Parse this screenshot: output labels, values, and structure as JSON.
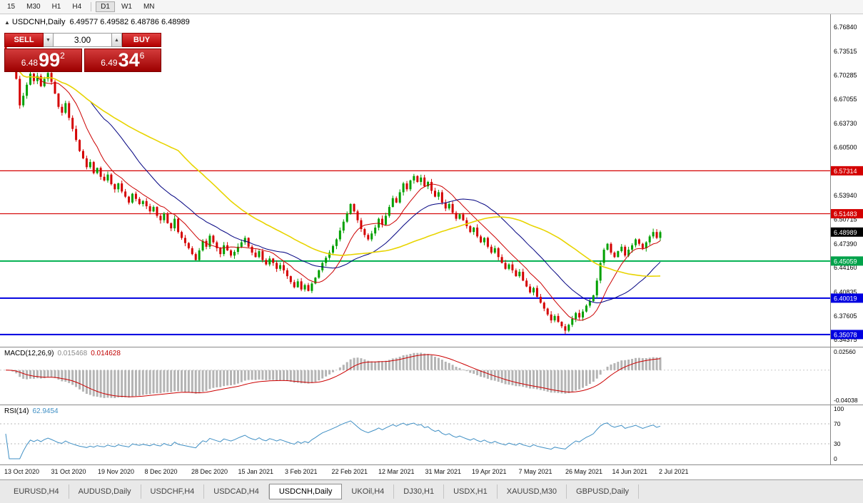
{
  "toolbar": {
    "timeframes": [
      "15",
      "M30",
      "H1",
      "H4",
      "D1",
      "W1",
      "MN"
    ],
    "active_timeframe": "D1"
  },
  "chart": {
    "symbol": "USDCNH,Daily",
    "ohlc_text": "6.49577 6.49582 6.48786 6.48989"
  },
  "trade": {
    "sell_label": "SELL",
    "buy_label": "BUY",
    "volume": "3.00",
    "down_arrow": "▼",
    "up_arrow": "▲",
    "sell_price": {
      "prefix": "6.48",
      "big": "99",
      "sup": "2"
    },
    "buy_price": {
      "prefix": "6.49",
      "big": "34",
      "sup": "6"
    }
  },
  "price_axis": {
    "ticks": [
      "6.76840",
      "6.73515",
      "6.70285",
      "6.67055",
      "6.63730",
      "6.60500",
      "6.53940",
      "6.50715",
      "6.47390",
      "6.44160",
      "6.40835",
      "6.37605",
      "6.34375"
    ],
    "badges": [
      {
        "label": "6.57314",
        "value": 6.57314,
        "color": "#d40000"
      },
      {
        "label": "6.51483",
        "value": 6.51483,
        "color": "#d40000"
      },
      {
        "label": "6.48989",
        "value": 6.48989,
        "color": "#000000"
      },
      {
        "label": "6.45059",
        "value": 6.45059,
        "color": "#00a24a"
      },
      {
        "label": "6.40019",
        "value": 6.40019,
        "color": "#0000e0"
      },
      {
        "label": "6.35078",
        "value": 6.35078,
        "color": "#0000e0"
      }
    ]
  },
  "macd": {
    "title": "MACD(12,26,9)",
    "value1": "0.015468",
    "value2": "0.014628",
    "axis_top": "0.02560",
    "axis_bottom": "-0.04038"
  },
  "rsi": {
    "title": "RSI(14)",
    "value": "62.9454",
    "levels": [
      "100",
      "70",
      "30",
      "0"
    ]
  },
  "tabs": {
    "items": [
      "EURUSD,H4",
      "AUDUSD,Daily",
      "USDCHF,H4",
      "USDCAD,H4",
      "USDCNH,Daily",
      "UKOil,H4",
      "DJ30,H1",
      "USDX,H1",
      "XAUUSD,M30",
      "GBPUSD,Daily"
    ],
    "active": "USDCNH,Daily"
  },
  "chart_data": {
    "type": "candlestick",
    "symbol": "USDCNH",
    "timeframe": "Daily",
    "title": "USDCNH,Daily",
    "current_ohlc": {
      "open": 6.49577,
      "high": 6.49582,
      "low": 6.48786,
      "close": 6.48989
    },
    "ylim": [
      6.34375,
      6.7684
    ],
    "x_labels": [
      "13 Oct 2020",
      "31 Oct 2020",
      "19 Nov 2020",
      "8 Dec 2020",
      "28 Dec 2020",
      "15 Jan 2021",
      "3 Feb 2021",
      "22 Feb 2021",
      "12 Mar 2021",
      "31 Mar 2021",
      "19 Apr 2021",
      "7 May 2021",
      "26 May 2021",
      "14 Jun 2021",
      "2 Jul 2021"
    ],
    "closes": [
      6.734,
      6.728,
      6.715,
      6.698,
      6.662,
      6.675,
      6.69,
      6.705,
      6.695,
      6.702,
      6.688,
      6.698,
      6.706,
      6.694,
      6.678,
      6.66,
      6.652,
      6.665,
      6.645,
      6.63,
      6.615,
      6.6,
      6.59,
      6.578,
      6.585,
      6.57,
      6.577,
      6.565,
      6.56,
      6.568,
      6.555,
      6.548,
      6.556,
      6.545,
      6.538,
      6.53,
      6.542,
      6.535,
      6.528,
      6.532,
      6.525,
      6.518,
      6.524,
      6.512,
      6.506,
      6.515,
      6.502,
      6.495,
      6.508,
      6.49,
      6.482,
      6.475,
      6.468,
      6.46,
      6.452,
      6.465,
      6.478,
      6.47,
      6.485,
      6.476,
      6.468,
      6.46,
      6.472,
      6.465,
      6.458,
      6.463,
      6.47,
      6.476,
      6.482,
      6.47,
      6.462,
      6.456,
      6.464,
      6.452,
      6.446,
      6.454,
      6.448,
      6.44,
      6.445,
      6.438,
      6.43,
      6.422,
      6.415,
      6.423,
      6.412,
      6.418,
      6.41,
      6.42,
      6.428,
      6.438,
      6.448,
      6.455,
      6.462,
      6.471,
      6.48,
      6.492,
      6.504,
      6.515,
      6.528,
      6.518,
      6.506,
      6.494,
      6.486,
      6.48,
      6.488,
      6.496,
      6.508,
      6.5,
      6.512,
      6.524,
      6.536,
      6.53,
      6.544,
      6.556,
      6.548,
      6.56,
      6.566,
      6.558,
      6.564,
      6.552,
      6.558,
      6.546,
      6.538,
      6.544,
      6.53,
      6.522,
      6.528,
      6.516,
      6.508,
      6.514,
      6.506,
      6.498,
      6.49,
      6.496,
      6.484,
      6.476,
      6.482,
      6.47,
      6.462,
      6.468,
      6.456,
      6.448,
      6.44,
      6.446,
      6.438,
      6.43,
      6.436,
      6.424,
      6.416,
      6.408,
      6.414,
      6.402,
      6.394,
      6.386,
      6.378,
      6.37,
      6.376,
      6.368,
      6.362,
      6.356,
      6.364,
      6.372,
      6.38,
      6.374,
      6.382,
      6.39,
      6.396,
      6.404,
      6.424,
      6.448,
      6.466,
      6.474,
      6.462,
      6.456,
      6.464,
      6.47,
      6.458,
      6.466,
      6.472,
      6.48,
      6.474,
      6.468,
      6.476,
      6.484,
      6.49,
      6.482,
      6.48989
    ],
    "horizontal_lines": [
      {
        "price": 6.57314,
        "color": "#d40000",
        "width": 1.2
      },
      {
        "price": 6.51483,
        "color": "#d40000",
        "width": 1.2
      },
      {
        "price": 6.45059,
        "color": "#00b050",
        "width": 2
      },
      {
        "price": 6.40019,
        "color": "#0000e0",
        "width": 2
      },
      {
        "price": 6.35078,
        "color": "#0000e0",
        "width": 2
      }
    ],
    "moving_averages": [
      {
        "period": 10,
        "color": "#cc0000",
        "width": 1
      },
      {
        "period": 25,
        "color": "#000080",
        "width": 1
      },
      {
        "period": 50,
        "color": "#e8d400",
        "width": 1.6
      }
    ],
    "up_color": "#00a000",
    "down_color": "#d40000",
    "indicators": [
      {
        "type": "MACD",
        "params": [
          12,
          26,
          9
        ],
        "values": [
          0.015468,
          0.014628
        ],
        "axis_range": [
          -0.04038,
          0.0256
        ],
        "histogram_color": "#b4b4b4",
        "signal_color": "#cc0000"
      },
      {
        "type": "RSI",
        "params": [
          14
        ],
        "value": 62.9454,
        "levels": [
          100,
          70,
          30,
          0
        ],
        "line_color": "#3f8fc4"
      }
    ]
  }
}
